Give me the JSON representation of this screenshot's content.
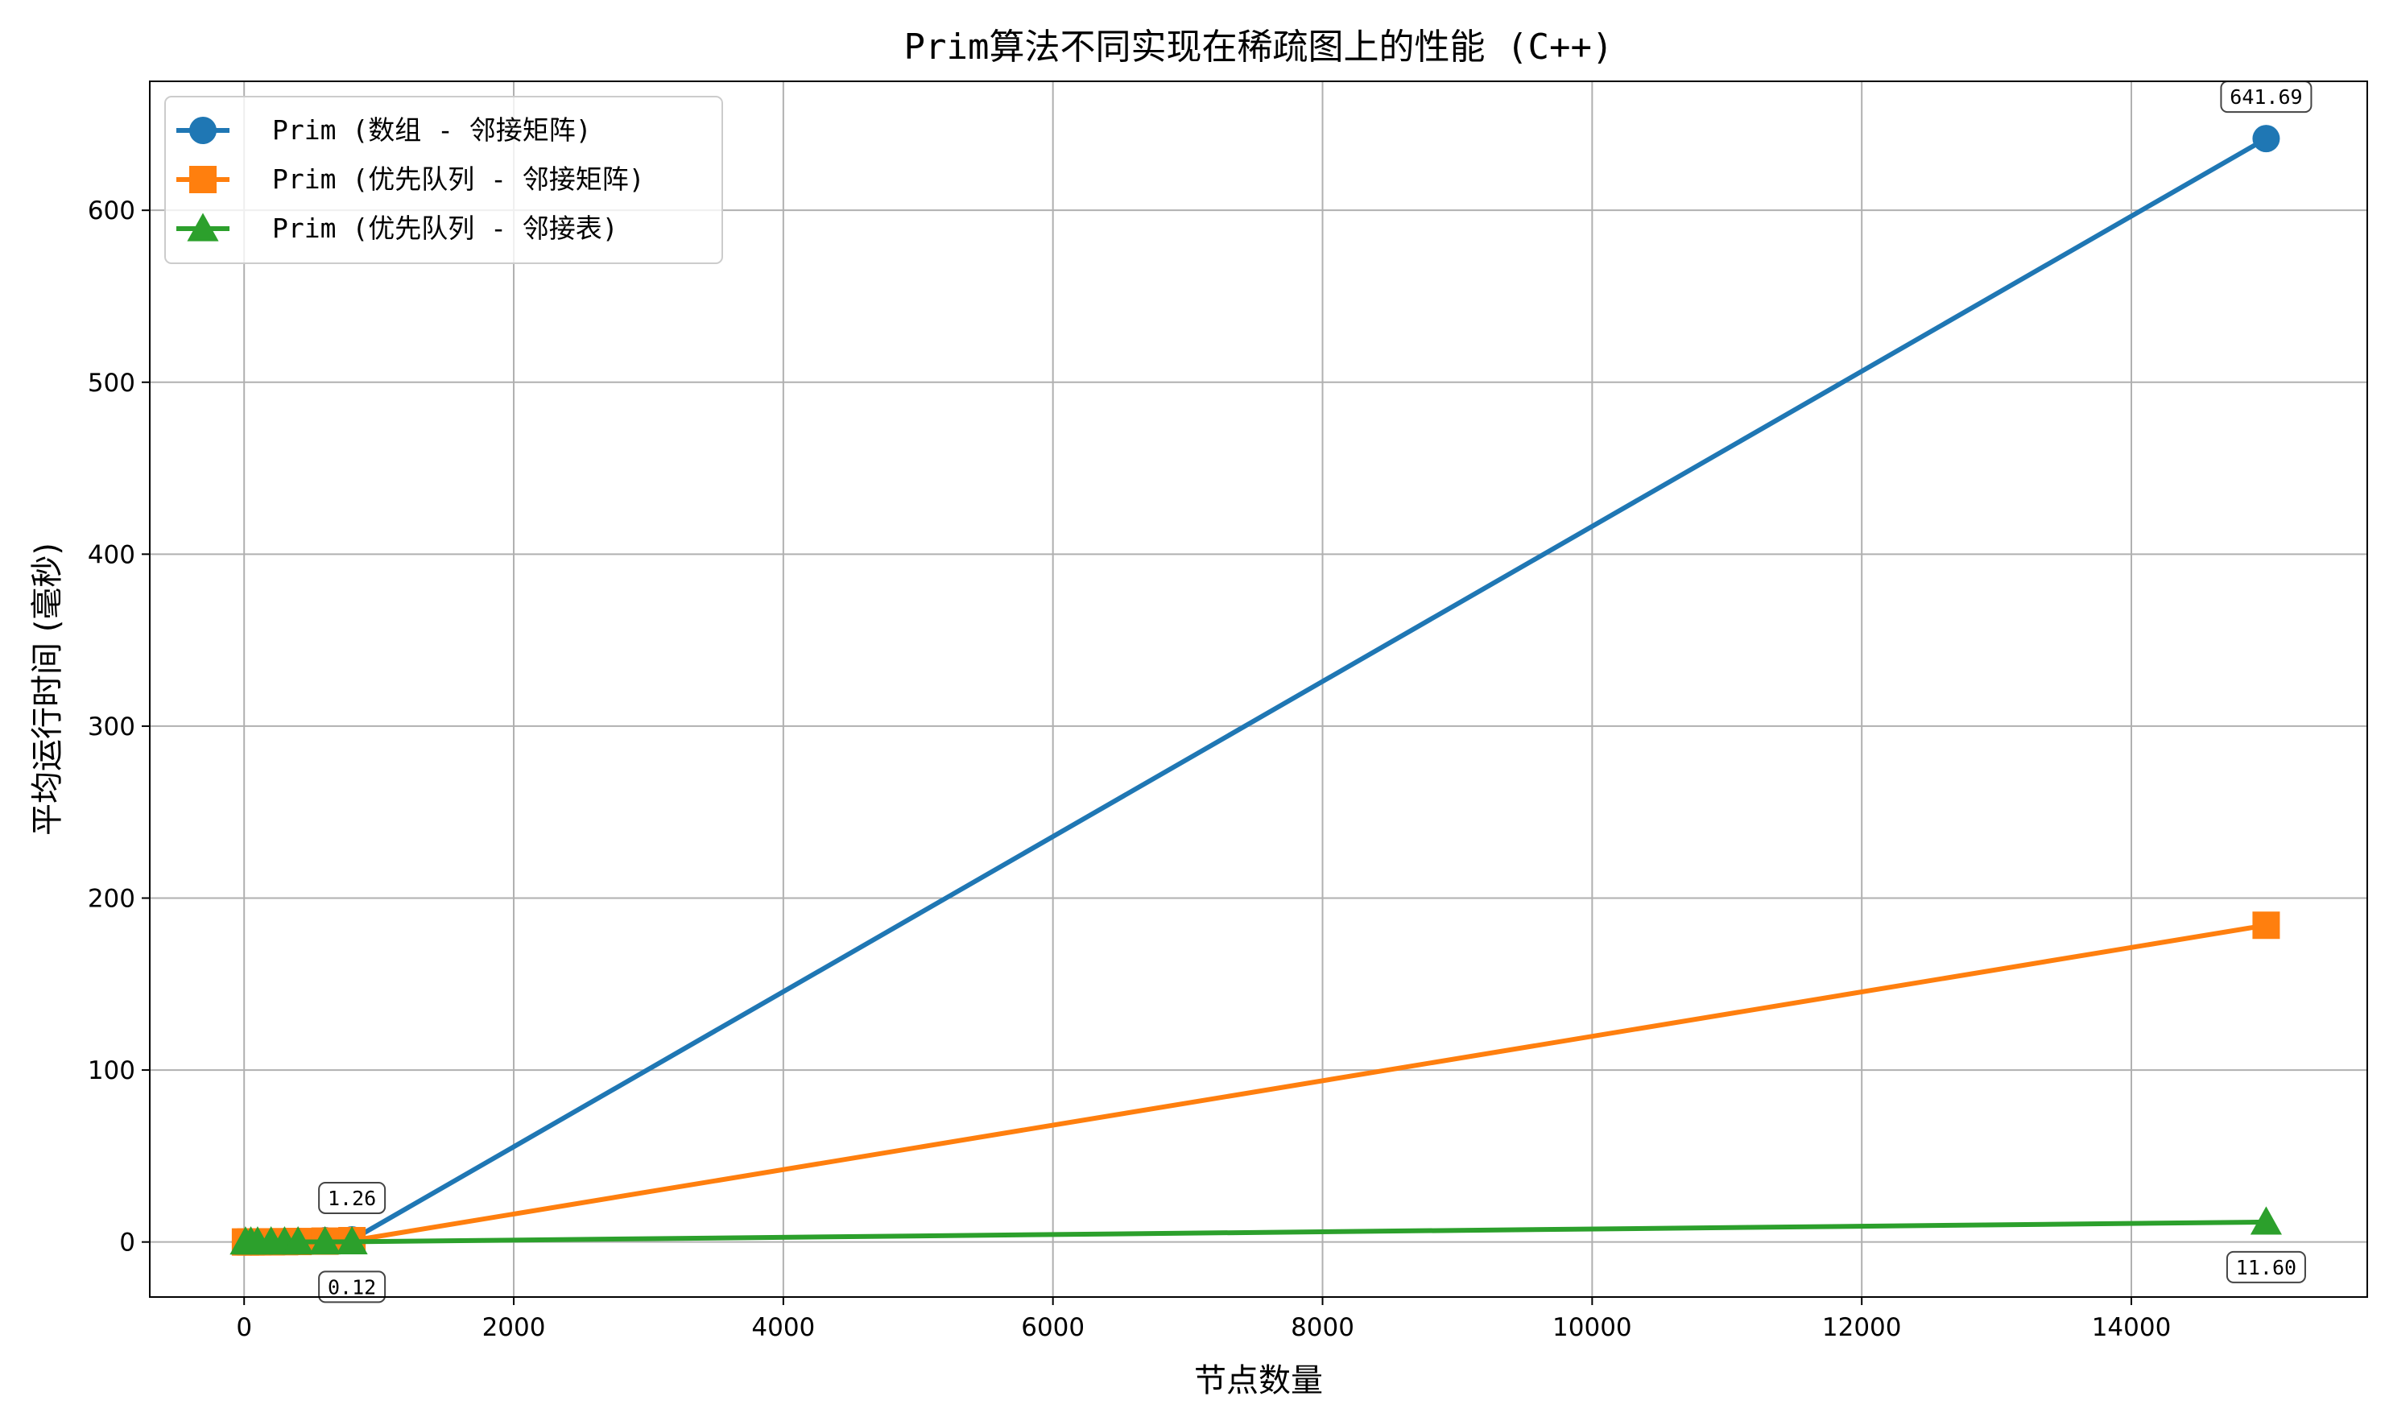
{
  "chart_data": {
    "type": "line",
    "title": "Prim算法不同实现在稀疏图上的性能 (C++)",
    "xlabel": "节点数量",
    "ylabel": "平均运行时间 (毫秒)",
    "xlim": [
      -700,
      15750
    ],
    "ylim": [
      -32,
      675
    ],
    "xticks": [
      0,
      2000,
      4000,
      6000,
      8000,
      10000,
      12000,
      14000
    ],
    "yticks": [
      0,
      100,
      200,
      300,
      400,
      500,
      600
    ],
    "grid": true,
    "legend_position": "top-left",
    "x": [
      10,
      50,
      100,
      200,
      300,
      400,
      600,
      800,
      15000
    ],
    "series": [
      {
        "name": "Prim (数组 - 邻接矩阵)",
        "color": "#1f77b4",
        "marker": "circle",
        "values": [
          0.01,
          0.02,
          0.05,
          0.12,
          0.25,
          0.45,
          0.8,
          1.26,
          641.69
        ],
        "data_labels": [
          "",
          "",
          "",
          "",
          "",
          "",
          "",
          "1.26",
          "641.69"
        ],
        "label_position": "above"
      },
      {
        "name": "Prim (优先队列 - 邻接矩阵)",
        "color": "#ff7f0e",
        "marker": "square",
        "values": [
          0.01,
          0.02,
          0.04,
          0.09,
          0.17,
          0.28,
          0.5,
          0.77,
          184.2
        ],
        "data_labels": [
          "",
          "",
          "",
          "",
          "",
          "",
          "",
          "",
          ""
        ],
        "label_position": "above"
      },
      {
        "name": "Prim (优先队列 - 邻接表)",
        "color": "#2ca02c",
        "marker": "triangle",
        "values": [
          0.0,
          0.01,
          0.01,
          0.02,
          0.04,
          0.05,
          0.08,
          0.12,
          11.6
        ],
        "data_labels": [
          "",
          "",
          "",
          "",
          "",
          "",
          "",
          "0.12",
          "11.60"
        ],
        "label_position": "below"
      }
    ]
  }
}
